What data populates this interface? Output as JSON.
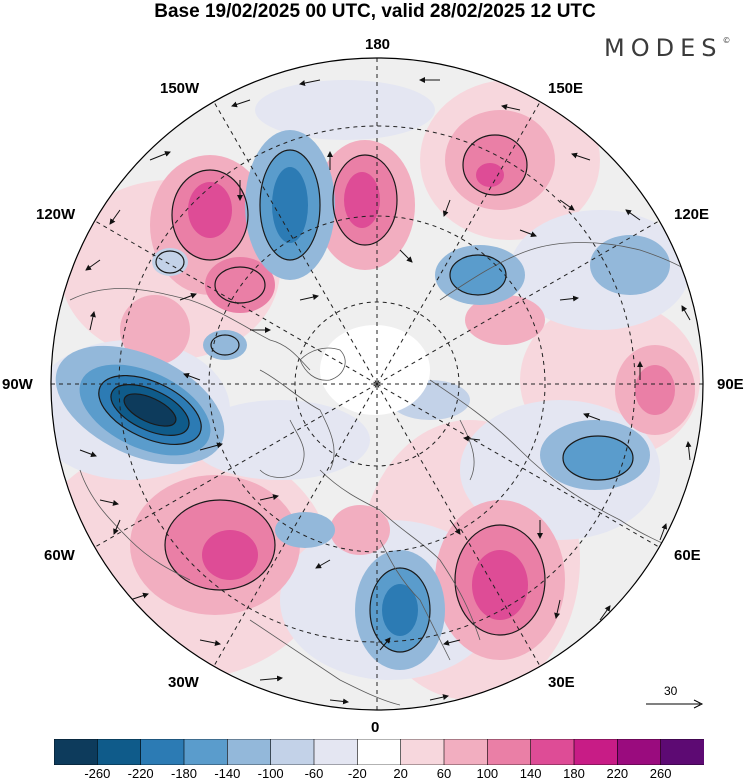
{
  "title": "Base 19/02/2025 00 UTC, valid 28/02/2025 12 UTC",
  "brand": "MODES",
  "brand_mark": "©",
  "longitude_labels": {
    "n180": "180",
    "e150": "150E",
    "e120": "120E",
    "e90": "90E",
    "e60": "60E",
    "e30": "30E",
    "n0": "0",
    "w30": "30W",
    "w60": "60W",
    "w90": "90W",
    "w120": "120W",
    "w150": "150W"
  },
  "reference_vector": "30",
  "colorbar": {
    "ticks": [
      "-260",
      "-220",
      "-180",
      "-140",
      "-100",
      "-60",
      "-20",
      "20",
      "60",
      "100",
      "140",
      "180",
      "220",
      "260"
    ],
    "colors": [
      "#0d3b5c",
      "#0f5b8a",
      "#2c7bb4",
      "#5a9ccc",
      "#93b8da",
      "#c3d2e8",
      "#e4e6f2",
      "#ffffff",
      "#f7d7dd",
      "#f2aec0",
      "#ea7fa6",
      "#de4c96",
      "#c81c86",
      "#9a0b7e",
      "#5d0a73"
    ]
  },
  "map_colors": {
    "land_outline": "#5a5a5a",
    "contours": "#1a1a1a",
    "grid": "#222222",
    "background_neutral": "#efefef"
  }
}
